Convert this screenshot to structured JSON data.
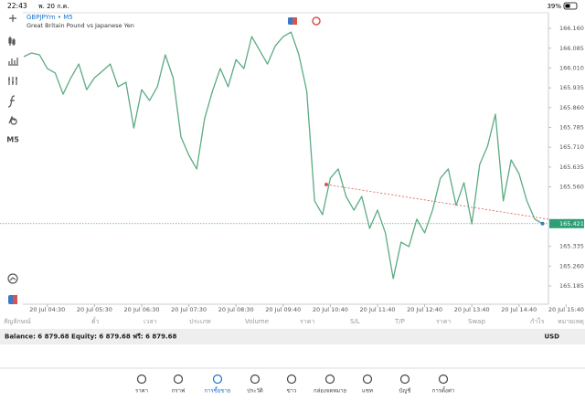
{
  "status": {
    "time": "22:43",
    "date": "พ. 20 ก.ค.",
    "battery": "39%"
  },
  "symbol": {
    "title": "GBPJPYm • M5",
    "description": "Great Britain Pound vs Japanese Yen"
  },
  "timeframe": "M5",
  "chart_data": {
    "type": "line",
    "color": "#5bab82",
    "categories": [
      null,
      null,
      null,
      "20 Jul 04:30",
      null,
      null,
      null,
      null,
      null,
      "20 Jul 05:30",
      null,
      null,
      null,
      null,
      null,
      "20 Jul 06:30",
      null,
      null,
      null,
      null,
      null,
      "20 Jul 07:30",
      null,
      null,
      null,
      null,
      null,
      "20 Jul 08:30",
      null,
      null,
      null,
      null,
      null,
      "20 Jul 09:40",
      null,
      null,
      null,
      null,
      null,
      "20 Jul 10:40",
      null,
      null,
      null,
      null,
      null,
      "20 Jul 11:40",
      null,
      null,
      null,
      null,
      null,
      "20 Jul 12:40",
      null,
      null,
      null,
      null,
      null,
      "20 Jul 13:40",
      null,
      null,
      null,
      null,
      null,
      "20 Jul 14:40",
      null,
      null,
      null,
      null,
      null,
      "20 Jul 15:40"
    ],
    "values": [
      166.053,
      166.067,
      166.06,
      166.008,
      165.991,
      165.911,
      165.973,
      166.025,
      165.928,
      165.973,
      165.998,
      166.025,
      165.939,
      165.956,
      165.783,
      165.928,
      165.887,
      165.939,
      166.06,
      165.973,
      165.749,
      165.68,
      165.628,
      165.818,
      165.922,
      166.008,
      165.939,
      166.042,
      166.008,
      166.129,
      166.077,
      166.025,
      166.094,
      166.129,
      166.146,
      166.06,
      165.922,
      165.507,
      165.455,
      165.593,
      165.628,
      165.524,
      165.472,
      165.524,
      165.403,
      165.472,
      165.386,
      165.213,
      165.351,
      165.334,
      165.438,
      165.386,
      165.472,
      165.593,
      165.628,
      165.49,
      165.576,
      165.42,
      165.645,
      165.714,
      165.835,
      165.507,
      165.662,
      165.61,
      165.507,
      165.438,
      165.421,
      null,
      null,
      null
    ],
    "ylim": [
      165.116,
      166.219
    ],
    "yticks": [
      {
        "value": 166.16,
        "label": "166.160"
      },
      166.085,
      {
        "value": 166.01,
        "label": "166.010"
      },
      165.935,
      {
        "value": 165.86,
        "label": "165.860"
      },
      165.785,
      {
        "value": 165.71,
        "label": "165.710"
      },
      165.635,
      {
        "value": 165.56,
        "label": "165.560"
      },
      165.335,
      {
        "value": 165.26,
        "label": "165.260"
      },
      165.185
    ],
    "current_price": 165.421,
    "current_price_color": "#2e9f75"
  },
  "positions_header": [
    "สัญลักษณ์",
    "ตั๋ว",
    "เวลา",
    "ประเภท",
    "Volume",
    "ราคา",
    "S/L",
    "T/P",
    "ราคา",
    "Swap",
    "กำไร",
    "หมายเหตุ"
  ],
  "balance": {
    "text": "Balance: 6 879.68 Equity: 6 879.68 ฟรี: 6 879.68",
    "currency": "USD"
  },
  "tabs": [
    "ราคา",
    "กราฟ",
    "การซื้อขาย",
    "ประวัติ",
    "ข่าว",
    "กล่องจดหมาย",
    "แชท",
    "บัญชี",
    "การตั้งค่า"
  ],
  "active_tab": 2
}
